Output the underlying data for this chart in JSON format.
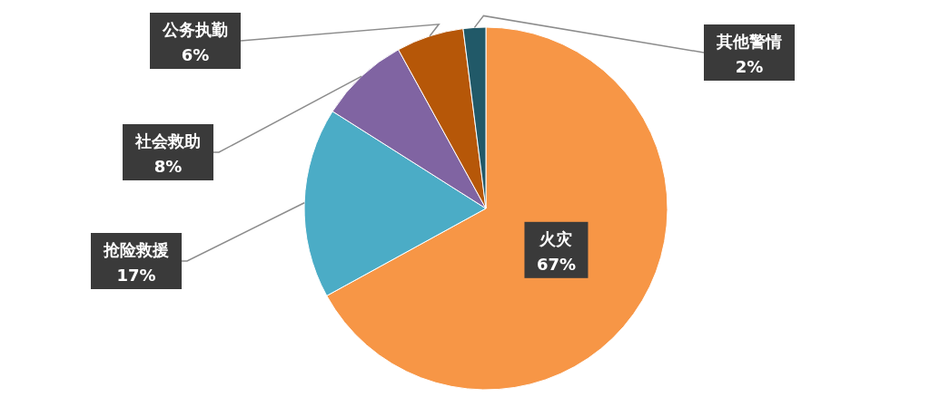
{
  "chart_data": {
    "type": "pie",
    "categories": [
      "火灾",
      "抢险救援",
      "社会救助",
      "公务执勤",
      "其他警情"
    ],
    "values": [
      67,
      17,
      8,
      6,
      2
    ],
    "colors": [
      "#f79646",
      "#4bacc6",
      "#8064a2",
      "#b65708",
      "#215968"
    ],
    "value_labels": [
      "67%",
      "17%",
      "8%",
      "6%",
      "2%"
    ]
  }
}
